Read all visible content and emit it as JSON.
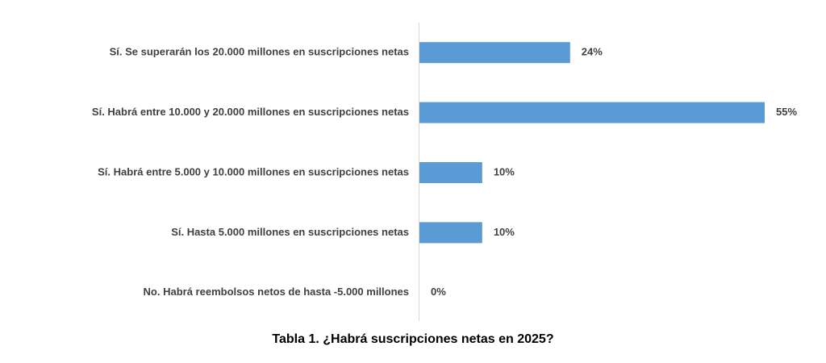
{
  "caption": "Tabla 1. ¿Habrá suscripciones netas en 2025?",
  "colors": {
    "bar": "#5b9bd5",
    "axis": "#d9d9d9",
    "text": "#404040"
  },
  "chart_data": {
    "type": "bar",
    "orientation": "horizontal",
    "categories": [
      "Sí. Se superarán los 20.000 millones en suscripciones netas",
      "Sí. Habrá entre 10.000 y 20.000 millones en suscripciones netas",
      "Sí. Habrá entre 5.000 y 10.000 millones en suscripciones netas",
      "Sí. Hasta 5.000 millones en suscripciones netas",
      "No. Habrá reembolsos netos de hasta -5.000 millones"
    ],
    "values": [
      24,
      55,
      10,
      10,
      0
    ],
    "value_labels": [
      "24%",
      "55%",
      "10%",
      "10%",
      "0%"
    ],
    "xlim": [
      0,
      55
    ],
    "grid": false,
    "legend": "none"
  }
}
